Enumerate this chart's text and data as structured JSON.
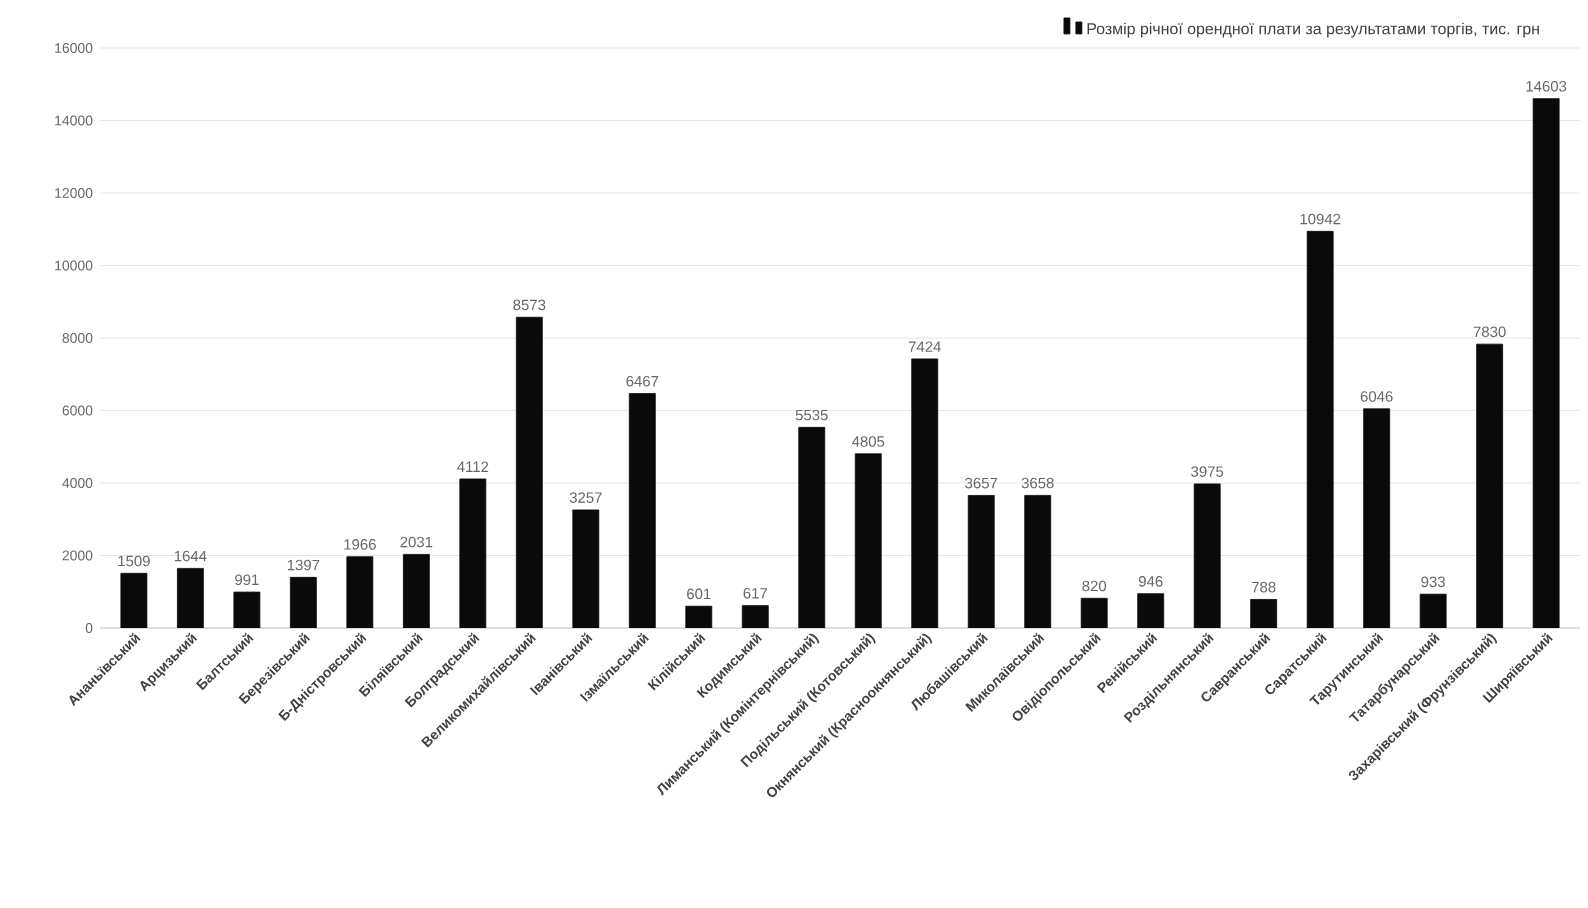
{
  "chart_data": {
    "type": "bar",
    "categories": [
      "Ананьївський",
      "Арцизький",
      "Балтський",
      "Березівський",
      "Б-Дністровський",
      "Біляївський",
      "Болградський",
      "Великомихайлівський",
      "Іванівський",
      "Ізмаїльський",
      "Кілійський",
      "Кодимський",
      "Лиманський (Комінтернівський)",
      "Подільський (Котовський)",
      "Окнянський (Красноокнянський)",
      "Любашівський",
      "Миколаївський",
      "Овідіопольський",
      "Ренійський",
      "Роздільнянський",
      "Савранський",
      "Саратський",
      "Тарутинський",
      "Татарбунарський",
      "Захарівський (Фрунзівський)",
      "Ширяївський"
    ],
    "series": [
      {
        "name": "Розмір річної орендної плати за результатами торгів, тис. грн",
        "color": "#0a0a0a",
        "values": [
          1509,
          1644,
          991,
          1397,
          1966,
          2031,
          4112,
          8573,
          3257,
          6467,
          601,
          617,
          5535,
          4805,
          7424,
          3657,
          3658,
          820,
          946,
          3975,
          788,
          10942,
          6046,
          933,
          7830,
          14603
        ]
      }
    ],
    "ylim": [
      0,
      16000
    ],
    "yticks": [
      0,
      2000,
      4000,
      6000,
      8000,
      10000,
      12000,
      14000,
      16000
    ],
    "grid": "y",
    "legend": "top right",
    "data_labels": true
  }
}
